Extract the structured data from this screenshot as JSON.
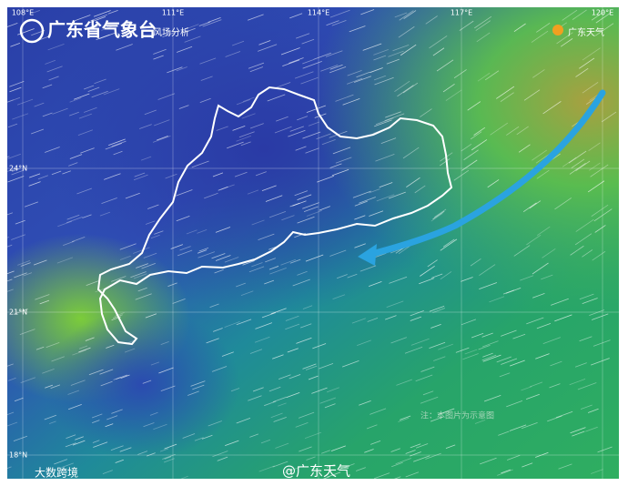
{
  "header": {
    "title": "广东省气象台",
    "subtitle": "风场分析",
    "brand": "广东天气"
  },
  "map": {
    "lon_labels": [
      "108°E",
      "111°E",
      "114°E",
      "117°E",
      "120°E"
    ],
    "lat_labels": [
      "24°N",
      "21°N",
      "18°N"
    ],
    "note": "注：本图片为示意图"
  },
  "footer": {
    "watermark": "@广东天气",
    "source": "大数跨境"
  }
}
